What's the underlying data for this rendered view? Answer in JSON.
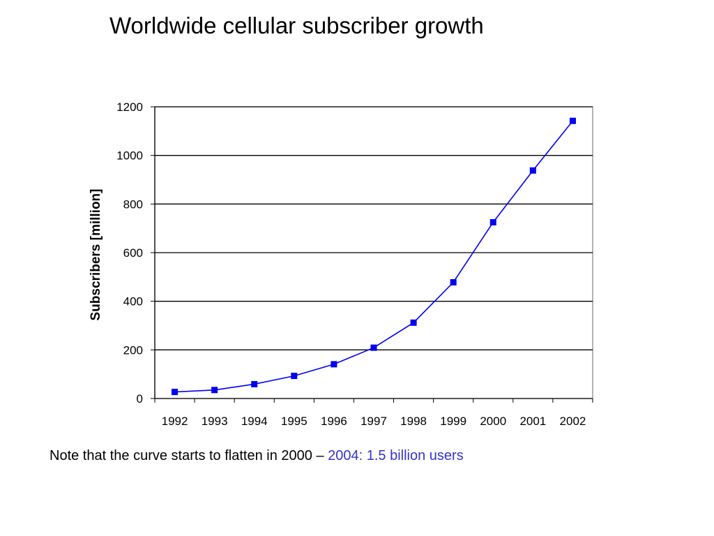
{
  "slide": {
    "title": "Worldwide cellular subscriber growth",
    "note_text": "Note that the curve starts to flatten in 2000 – ",
    "note_highlight": "2004: 1.5 billion users",
    "highlight_color": "#3333cc"
  },
  "chart_data": {
    "type": "line",
    "title": "",
    "xlabel": "",
    "ylabel": "Subscribers [million]",
    "categories": [
      "1992",
      "1993",
      "1994",
      "1995",
      "1996",
      "1997",
      "1998",
      "1999",
      "2000",
      "2001",
      "2002"
    ],
    "series": [
      {
        "values": [
          27,
          35,
          59,
          93,
          141,
          209,
          312,
          478,
          725,
          938,
          1142
        ],
        "color": "#0000ee",
        "marker": "square"
      }
    ],
    "ylim": [
      0,
      1200
    ],
    "yticks": [
      0,
      200,
      400,
      600,
      800,
      1000,
      1200
    ],
    "grid": "horizontal",
    "legend": "none"
  }
}
